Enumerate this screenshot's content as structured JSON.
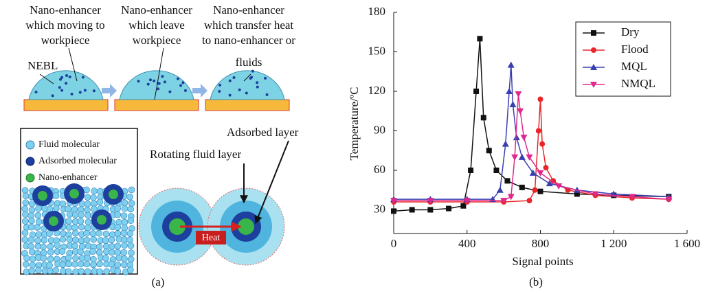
{
  "diagram": {
    "steps": [
      {
        "lines": [
          "Nano-enhancer",
          "which moving to",
          "workpiece"
        ]
      },
      {
        "lines": [
          "Nano-enhancer",
          "which leave",
          "workpiece"
        ]
      },
      {
        "lines": [
          "Nano-enhancer",
          "which transfer heat",
          "to nano-enhancer or",
          "fluids"
        ]
      }
    ],
    "layer_label": "NEBL",
    "legend": [
      "Fluid molecular",
      "Adsorbed molecular",
      "Nano-enhancer"
    ],
    "adsorbed_layer": "Adsorbed layer",
    "rotating_layer": "Rotating fluid layer",
    "heat": "Heat",
    "caption": "(a)"
  },
  "chart_data": {
    "type": "line",
    "caption": "(b)",
    "x_label": "Signal points",
    "y_label": "Temperature/ºC",
    "xlim": [
      0,
      1600
    ],
    "ylim": [
      12,
      180
    ],
    "xticks": [
      0,
      400,
      800,
      {
        "value": 1200,
        "label": "1 200"
      },
      {
        "value": 1600,
        "label": "1 600"
      }
    ],
    "yticks": [
      30,
      60,
      90,
      120,
      150,
      180
    ],
    "legend_position": "upper right",
    "series": [
      {
        "name": "Dry",
        "color": "#111111",
        "marker": "square",
        "x": [
          0,
          100,
          200,
          300,
          380,
          420,
          450,
          470,
          490,
          520,
          560,
          620,
          700,
          800,
          1000,
          1200,
          1500
        ],
        "values": [
          29,
          30,
          30,
          31,
          33,
          60,
          120,
          160,
          100,
          75,
          60,
          52,
          47,
          44,
          42,
          41,
          40
        ]
      },
      {
        "name": "Flood",
        "color": "#e8262a",
        "marker": "circle",
        "x": [
          0,
          200,
          400,
          600,
          740,
          770,
          790,
          800,
          810,
          830,
          870,
          950,
          1100,
          1300,
          1500
        ],
        "values": [
          36,
          36,
          36,
          36,
          37,
          45,
          90,
          114,
          80,
          62,
          52,
          45,
          41,
          39,
          38
        ]
      },
      {
        "name": "MQL",
        "color": "#3a3fb0",
        "marker": "triangle",
        "x": [
          0,
          200,
          400,
          540,
          580,
          610,
          630,
          640,
          650,
          670,
          700,
          760,
          850,
          1000,
          1200,
          1500
        ],
        "values": [
          38,
          38,
          38,
          38,
          45,
          80,
          120,
          140,
          110,
          85,
          70,
          58,
          50,
          45,
          42,
          40
        ]
      },
      {
        "name": "NMQL",
        "color": "#e0288c",
        "marker": "triangle-down",
        "x": [
          0,
          200,
          400,
          600,
          640,
          660,
          680,
          690,
          710,
          740,
          800,
          900,
          1100,
          1300,
          1500
        ],
        "values": [
          37,
          37,
          37,
          37,
          40,
          70,
          118,
          105,
          85,
          70,
          58,
          48,
          42,
          40,
          38
        ]
      }
    ]
  }
}
